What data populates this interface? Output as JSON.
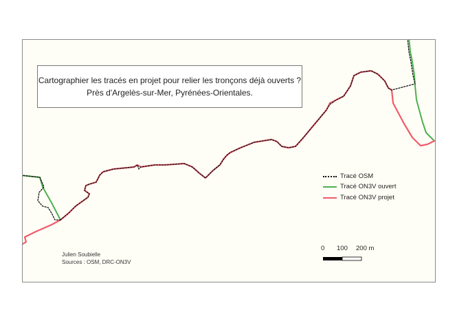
{
  "title": {
    "line1": "Cartographier les tracés en projet pour relier les tronçons déjà ouverts ?",
    "line2": "Près d'Argelès-sur-Mer, Pyrénées-Orientales."
  },
  "legend": [
    {
      "label": "Tracé OSM",
      "color": "#000000",
      "style": "dotted"
    },
    {
      "label": "Tracé ON3V ouvert",
      "color": "#4caf50",
      "style": "solid"
    },
    {
      "label": "Tracé ON3V projet",
      "color": "#f05a6a",
      "style": "solid"
    }
  ],
  "scale_bar": {
    "labels": [
      "0",
      "100",
      "200 m"
    ]
  },
  "credits": {
    "author": "Julien Soubielle",
    "sources": "Sources : OSM, DRC-ON3V"
  }
}
